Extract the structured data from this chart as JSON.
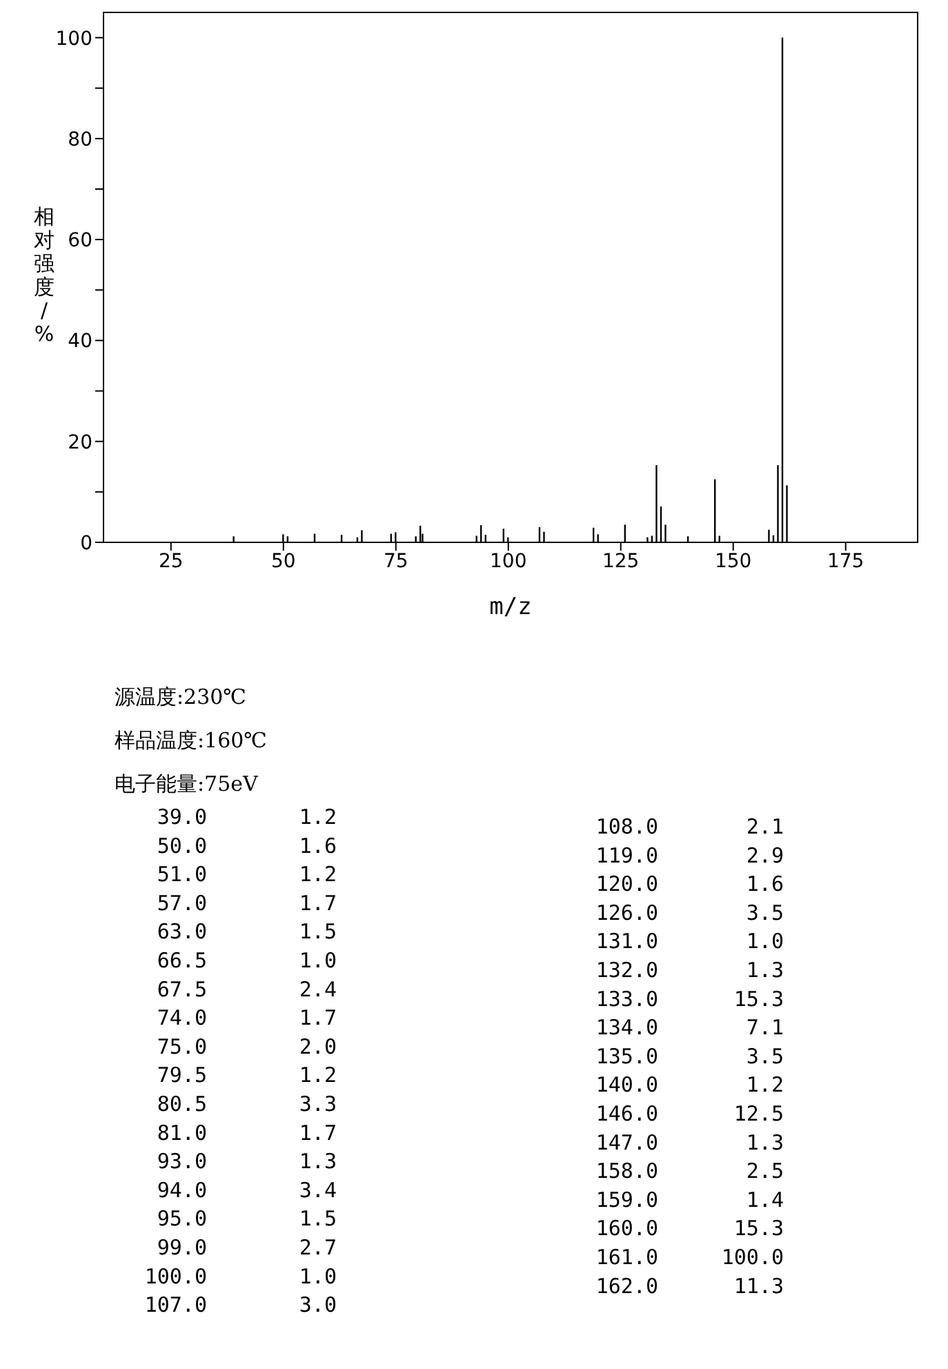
{
  "chart_data": [
    {
      "type": "bar",
      "xlabel": "m/z",
      "ylabel": "相对强度/%",
      "x": [
        39,
        50,
        51,
        57,
        63,
        66.5,
        67.5,
        74,
        75,
        79.5,
        80.5,
        81,
        93,
        94,
        95,
        99,
        100,
        107,
        108,
        119,
        120,
        126,
        131,
        132,
        133,
        134,
        135,
        140,
        146,
        147,
        158,
        159,
        160,
        161,
        162
      ],
      "values": [
        1.2,
        1.6,
        1.2,
        1.7,
        1.5,
        1.0,
        2.4,
        1.7,
        2.0,
        1.2,
        3.3,
        1.7,
        1.3,
        3.4,
        1.5,
        2.7,
        1.0,
        3.0,
        2.1,
        2.9,
        1.6,
        3.5,
        1.0,
        1.3,
        15.3,
        7.1,
        3.5,
        1.2,
        12.5,
        1.3,
        2.5,
        1.4,
        15.3,
        100.0,
        11.3
      ],
      "color": "#000000",
      "xlim": [
        10,
        191
      ],
      "xticks": [
        25,
        50,
        75,
        100,
        125,
        150,
        175
      ],
      "ylim": [
        0,
        105
      ],
      "yticks": [
        0,
        {
          "value": 10,
          "label": null
        },
        20,
        {
          "value": 30,
          "label": null
        },
        40,
        {
          "value": 50,
          "label": null
        },
        60,
        {
          "value": 70,
          "label": null
        },
        80,
        {
          "value": 90,
          "label": null
        },
        100
      ],
      "grid": false,
      "legend": false
    },
    {
      "type": "other",
      "annotations": [
        "源温度:230℃",
        "样品温度:160℃",
        "电子能量:75eV"
      ],
      "categories": [
        "39.0",
        "50.0",
        "51.0",
        "57.0",
        "63.0",
        "66.5",
        "67.5",
        "74.0",
        "75.0",
        "79.5",
        "80.5",
        "81.0",
        "93.0",
        "94.0",
        "95.0",
        "99.0",
        "100.0",
        "107.0",
        "108.0",
        "119.0",
        "120.0",
        "126.0",
        "131.0",
        "132.0",
        "133.0",
        "134.0",
        "135.0",
        "140.0",
        "146.0",
        "147.0",
        "158.0",
        "159.0",
        "160.0",
        "161.0",
        "162.0"
      ],
      "value_labels": [
        "1.2",
        "1.6",
        "1.2",
        "1.7",
        "1.5",
        "1.0",
        "2.4",
        "1.7",
        "2.0",
        "1.2",
        "3.3",
        "1.7",
        "1.3",
        "3.4",
        "1.5",
        "2.7",
        "1.0",
        "3.0",
        "2.1",
        "2.9",
        "1.6",
        "3.5",
        "1.0",
        "1.3",
        "15.3",
        "7.1",
        "3.5",
        "1.2",
        "12.5",
        "1.3",
        "2.5",
        "1.4",
        "15.3",
        "100.0",
        "11.3"
      ]
    }
  ]
}
